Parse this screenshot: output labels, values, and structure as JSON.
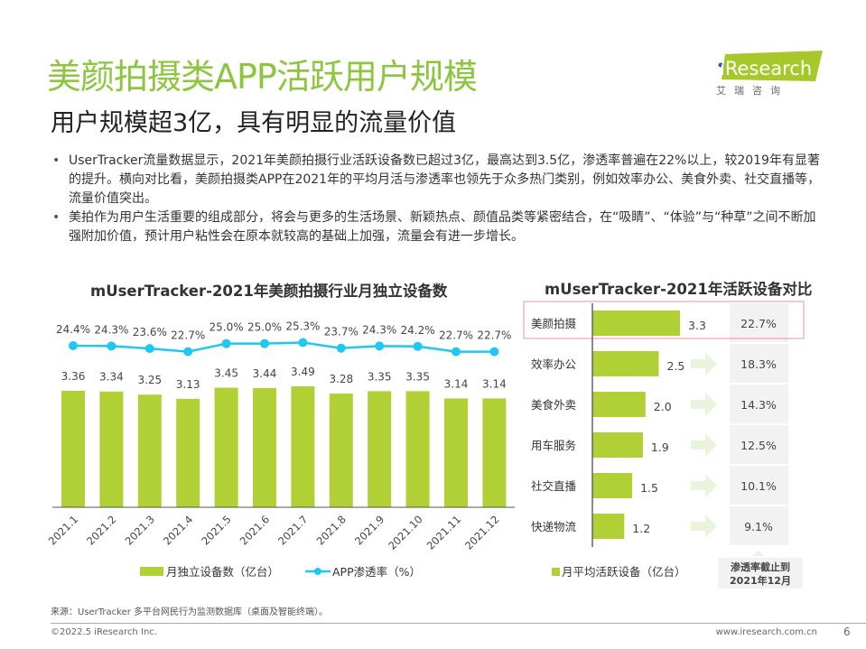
{
  "header": {
    "title": "美颜拍摄类APP活跃用户规模",
    "subtitle": "用户规模超3亿，具有明显的流量价值",
    "logo_text": "iResearch",
    "logo_cn": "艾 瑞 咨 询"
  },
  "bullets": [
    "UserTracker流量数据显示，2021年美颜拍摄行业活跃设备数已超过3亿，最高达到3.5亿，渗透率普遍在22%以上，较2019年有显著的提升。横向对比看，美颜拍摄类APP在2021年的平均月活与渗透率也领先于众多热门类别，例如效率办公、美食外卖、社交直播等，流量价值突出。",
    "美拍作为用户生活重要的组成部分，将会与更多的生活场景、新颖热点、颜值品类等紧密结合，在“吸睛”、“体验”与“种草”之间不断加强附加价值，预计用户粘性会在原本就较高的基础上加强，流量会有进一步增长。"
  ],
  "colors": {
    "green": "#b0d035",
    "title_green": "#8cc63f",
    "line": "#1ec8f0",
    "highlight": "#f4a6a6"
  },
  "chart_data": [
    {
      "type": "bar+line",
      "title": "mUserTracker-2021年美颜拍摄行业月独立设备数",
      "categories": [
        "2021.1",
        "2021.2",
        "2021.3",
        "2021.4",
        "2021.5",
        "2021.6",
        "2021.7",
        "2021.8",
        "2021.9",
        "2021.10",
        "2021.11",
        "2021.12"
      ],
      "series": [
        {
          "name": "月独立设备数（亿台）",
          "type": "bar",
          "values": [
            3.36,
            3.34,
            3.25,
            3.13,
            3.45,
            3.44,
            3.49,
            3.28,
            3.35,
            3.35,
            3.14,
            3.14
          ]
        },
        {
          "name": "APP渗透率（%）",
          "type": "line",
          "values": [
            24.4,
            24.3,
            23.6,
            22.7,
            25.0,
            25.0,
            25.3,
            23.7,
            24.3,
            24.2,
            22.7,
            22.7
          ],
          "labels": [
            "24.4%",
            "24.3%",
            "23.6%",
            "22.7%",
            "25.0%",
            "25.0%",
            "25.3%",
            "23.7%",
            "24.3%",
            "24.2%",
            "22.7%",
            "22.7%"
          ]
        }
      ],
      "legend": "bottom"
    },
    {
      "type": "horizontal-bar",
      "title": "mUserTracker-2021年活跃设备对比",
      "categories": [
        "美颜拍摄",
        "效率办公",
        "美食外卖",
        "用车服务",
        "社交直播",
        "快递物流"
      ],
      "series": [
        {
          "name": "月平均活跃设备（亿台）",
          "values": [
            3.3,
            2.5,
            2.0,
            1.9,
            1.5,
            1.2
          ],
          "labels": [
            "3.3",
            "2.5",
            "2.0",
            "1.9",
            "1.5",
            "1.2"
          ]
        }
      ],
      "penetration": [
        "22.7%",
        "18.3%",
        "14.3%",
        "12.5%",
        "10.1%",
        "9.1%"
      ],
      "penetration_label": [
        "渗透率截止到",
        "2021年12月"
      ],
      "legend": "bottom",
      "highlighted": "美颜拍摄"
    }
  ],
  "footer": {
    "source": "来源：UserTracker 多平台网民行为监测数据库（桌面及智能终端）。",
    "copyright": "©2022.5 iResearch Inc.",
    "url": "www.iresearch.com.cn",
    "page": "6"
  }
}
